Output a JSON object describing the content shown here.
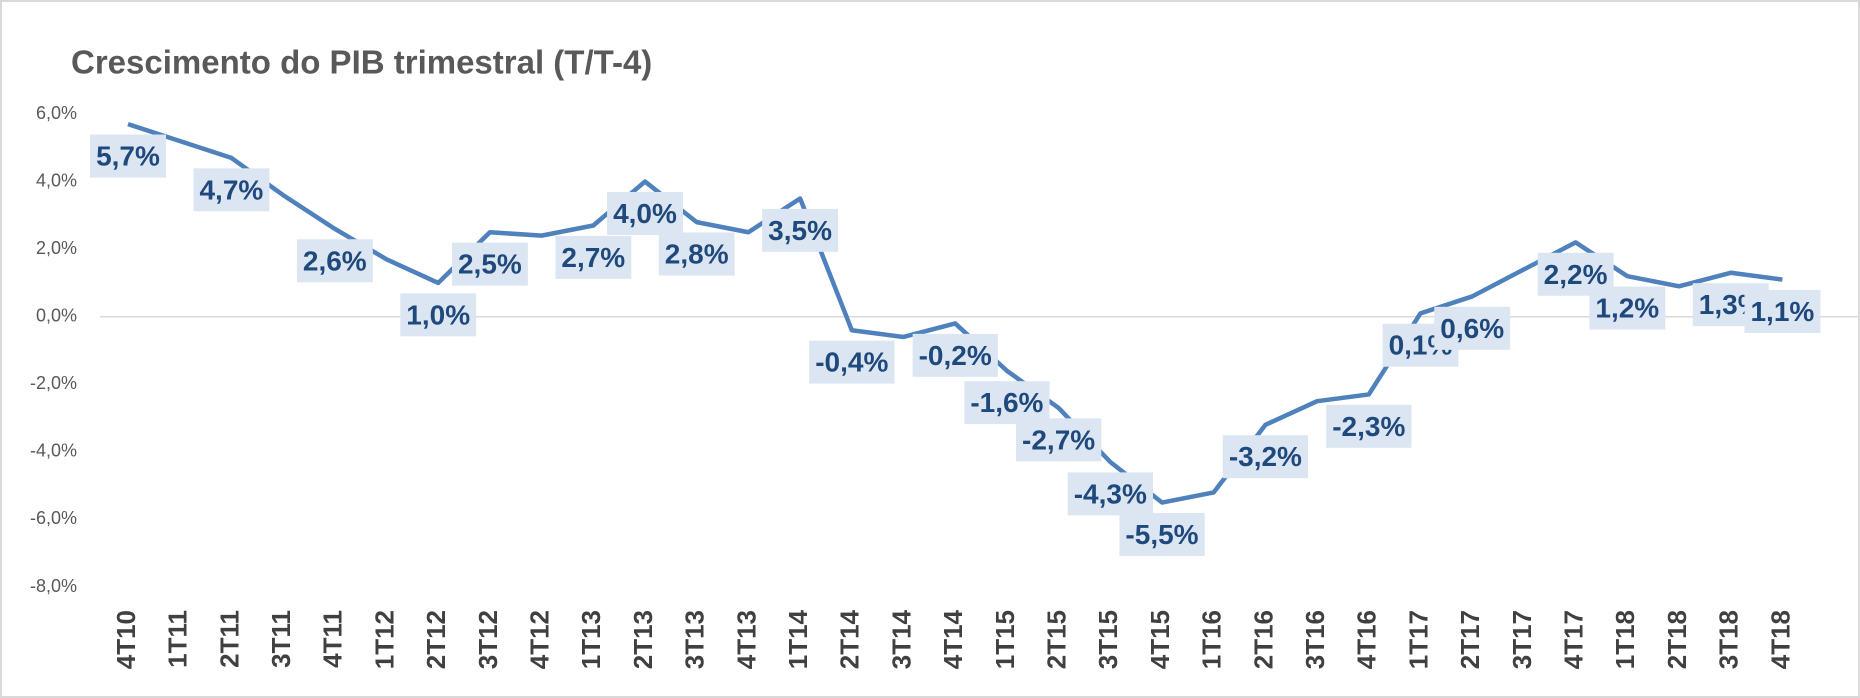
{
  "chart_data": {
    "type": "line",
    "title": "Crescimento do PIB trimestral  (T/T-4)",
    "categories": [
      "4T10",
      "1T11",
      "2T11",
      "3T11",
      "4T11",
      "1T12",
      "2T12",
      "3T12",
      "4T12",
      "1T13",
      "2T13",
      "3T13",
      "4T13",
      "1T14",
      "2T14",
      "3T14",
      "4T14",
      "1T15",
      "2T15",
      "3T15",
      "4T15",
      "1T16",
      "2T16",
      "3T16",
      "4T16",
      "1T17",
      "2T17",
      "3T17",
      "4T17",
      "1T18",
      "2T18",
      "3T18",
      "4T18"
    ],
    "series": [
      {
        "name": "PIB",
        "color": "#4f81bd",
        "values": [
          5.7,
          5.2,
          4.7,
          3.6,
          2.6,
          1.7,
          1.0,
          2.5,
          2.4,
          2.7,
          4.0,
          2.8,
          2.5,
          3.5,
          -0.4,
          -0.6,
          -0.2,
          -1.6,
          -2.7,
          -4.3,
          -5.5,
          -5.2,
          -3.2,
          -2.5,
          -2.3,
          0.1,
          0.6,
          1.4,
          2.2,
          1.2,
          0.9,
          1.3,
          1.1
        ],
        "value_labels": [
          "5,7%",
          null,
          "4,7%",
          null,
          "2,6%",
          null,
          "1,0%",
          "2,5%",
          null,
          "2,7%",
          "4,0%",
          "2,8%",
          null,
          "3,5%",
          "-0,4%",
          null,
          "-0,2%",
          "-1,6%",
          "-2,7%",
          "-4,3%",
          "-5,5%",
          null,
          "-3,2%",
          null,
          "-2,3%",
          "0,1%",
          "0,6%",
          null,
          "2,2%",
          "1,2%",
          null,
          "1,3%",
          "1,1%"
        ]
      }
    ],
    "ylim": [
      -8,
      6
    ],
    "yticks": [
      {
        "value": -8,
        "label": "-8,0%"
      },
      {
        "value": -6,
        "label": "-6,0%"
      },
      {
        "value": -4,
        "label": "-4,0%"
      },
      {
        "value": -2,
        "label": "-2,0%"
      },
      {
        "value": 0,
        "label": "0,0%"
      },
      {
        "value": 2,
        "label": "2,0%"
      },
      {
        "value": 4,
        "label": "4,0%"
      },
      {
        "value": 6,
        "label": "6,0%"
      }
    ],
    "grid": false
  }
}
